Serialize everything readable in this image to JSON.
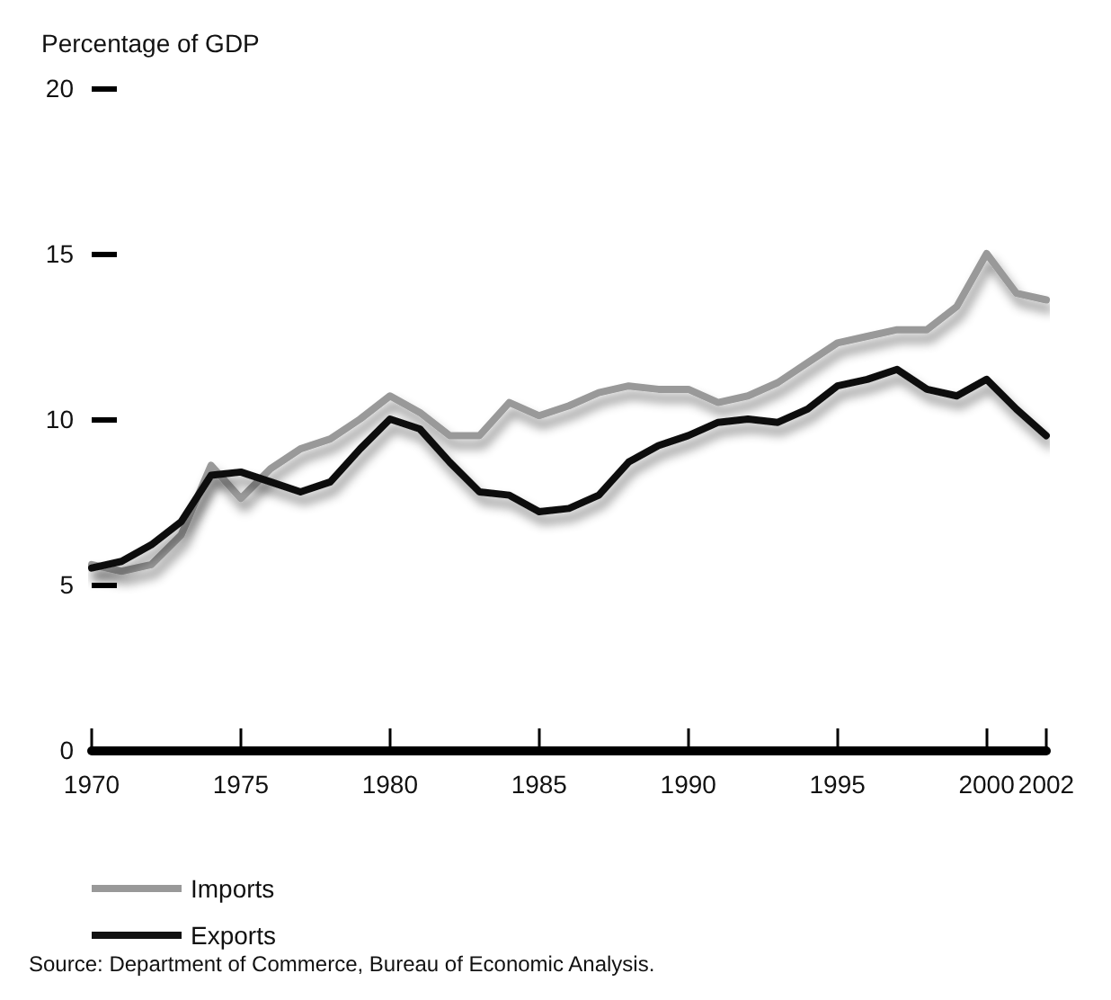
{
  "chart_data": {
    "type": "line",
    "ylabel": "Percentage of GDP",
    "x": [
      1970,
      1971,
      1972,
      1973,
      1974,
      1975,
      1976,
      1977,
      1978,
      1979,
      1980,
      1981,
      1982,
      1983,
      1984,
      1985,
      1986,
      1987,
      1988,
      1989,
      1990,
      1991,
      1992,
      1993,
      1994,
      1995,
      1996,
      1997,
      1998,
      1999,
      2000,
      2001,
      2002
    ],
    "series": [
      {
        "name": "Imports",
        "color": "#999999",
        "values": [
          5.6,
          5.4,
          5.6,
          6.5,
          8.6,
          7.6,
          8.5,
          9.1,
          9.4,
          10.0,
          10.7,
          10.2,
          9.5,
          9.5,
          10.5,
          10.1,
          10.4,
          10.8,
          11.0,
          10.9,
          10.9,
          10.5,
          10.7,
          11.1,
          11.7,
          12.3,
          12.5,
          12.7,
          12.7,
          13.4,
          15.0,
          13.8,
          13.6
        ]
      },
      {
        "name": "Exports",
        "color": "#111111",
        "values": [
          5.5,
          5.7,
          6.2,
          6.9,
          8.3,
          8.4,
          8.1,
          7.8,
          8.1,
          9.1,
          10.0,
          9.7,
          8.7,
          7.8,
          7.7,
          7.2,
          7.3,
          7.7,
          8.7,
          9.2,
          9.5,
          9.9,
          10.0,
          9.9,
          10.3,
          11.0,
          11.2,
          11.5,
          10.9,
          10.7,
          11.2,
          10.3,
          9.5
        ]
      }
    ],
    "xlim": [
      1970,
      2002
    ],
    "xticks": [
      1970,
      1975,
      1980,
      1985,
      1990,
      1995,
      2000,
      2002
    ],
    "ylim": [
      0,
      20
    ],
    "yticks": [
      0,
      5,
      10,
      15,
      20
    ],
    "grid": false,
    "legend": "bottom left",
    "marker": "none",
    "line_style": "solid",
    "annotations": [
      "Source: Department of Commerce, Bureau of Economic Analysis."
    ]
  }
}
